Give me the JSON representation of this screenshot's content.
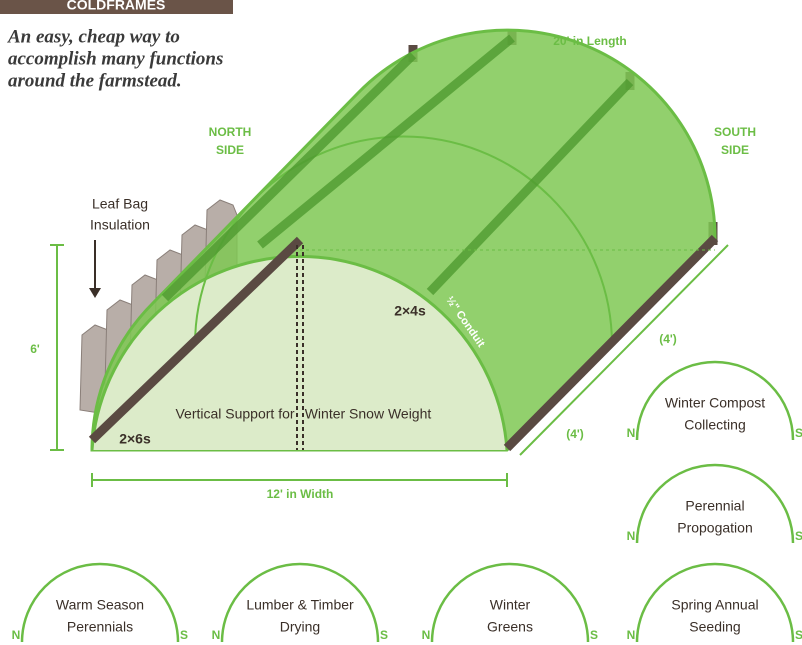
{
  "header": {
    "tab": "COLDFRAMES",
    "tagline": [
      "An easy, cheap way to",
      "accomplish many functions",
      "around the farmstead."
    ]
  },
  "diagram": {
    "length": "20' in Length",
    "north": [
      "NORTH",
      "SIDE"
    ],
    "south": [
      "SOUTH",
      "SIDE"
    ],
    "insulation": [
      "Leaf Bag",
      "Insulation"
    ],
    "height": "6'",
    "rafters": "2×4s",
    "conduit": "½\" Conduit",
    "depth": [
      "(4')",
      "(4')"
    ],
    "support": [
      "Vertical Support for",
      "Winter Snow Weight"
    ],
    "base": "2×6s",
    "width": "12' in Width"
  },
  "uses": [
    {
      "label": [
        "Winter Compost",
        "Collecting"
      ],
      "north": "N",
      "south": "S"
    },
    {
      "label": [
        "Perennial",
        "Propogation"
      ],
      "north": "N",
      "south": "S"
    },
    {
      "label": [
        "Warm Season",
        "Perennials"
      ],
      "north": "N",
      "south": "S"
    },
    {
      "label": [
        "Lumber & Timber",
        "Drying"
      ],
      "north": "N",
      "south": "S"
    },
    {
      "label": [
        "Winter",
        "Greens"
      ],
      "north": "N",
      "south": "S"
    },
    {
      "label": [
        "Spring Annual",
        "Seeding"
      ],
      "north": "N",
      "south": "S"
    }
  ]
}
